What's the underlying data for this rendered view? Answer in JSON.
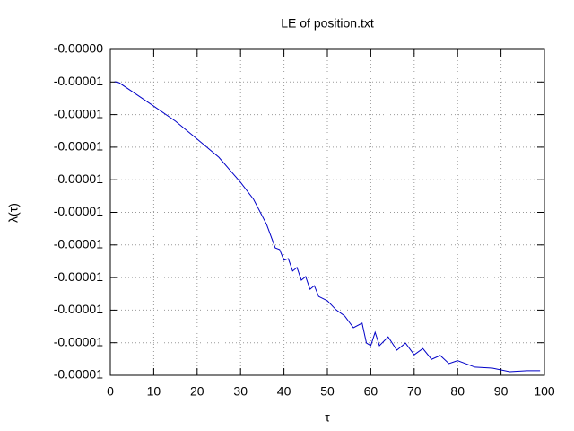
{
  "chart_data": {
    "type": "line",
    "title": "LE of position.txt",
    "x_label": "τ",
    "y_label": "λ(τ)",
    "series": [
      {
        "name": "LE",
        "color": "#0000c8",
        "x": [
          1,
          2,
          5,
          10,
          15,
          20,
          25,
          30,
          33,
          36,
          38,
          39,
          40,
          41,
          42,
          43,
          44,
          45,
          46,
          47,
          48,
          50,
          52,
          54,
          56,
          58,
          59,
          60,
          61,
          62,
          64,
          66,
          68,
          70,
          72,
          74,
          76,
          78,
          80,
          84,
          88,
          92,
          96,
          99
        ],
        "values": [
          -5.49e-06,
          -5.52e-06,
          -5.79e-06,
          -6.24e-06,
          -6.7e-06,
          -7.25e-06,
          -7.81e-06,
          -8.58e-06,
          -9.1e-06,
          -9.87e-06,
          -1.059e-05,
          -1.064e-05,
          -1.097e-05,
          -1.092e-05,
          -1.13e-05,
          -1.119e-05,
          -1.158e-05,
          -1.147e-05,
          -1.186e-05,
          -1.175e-05,
          -1.208e-05,
          -1.221e-05,
          -1.249e-05,
          -1.268e-05,
          -1.304e-05,
          -1.29e-05,
          -1.351e-05,
          -1.359e-05,
          -1.318e-05,
          -1.359e-05,
          -1.332e-05,
          -1.373e-05,
          -1.351e-05,
          -1.387e-05,
          -1.368e-05,
          -1.401e-05,
          -1.389e-05,
          -1.414e-05,
          -1.405e-05,
          -1.425e-05,
          -1.428e-05,
          -1.439e-05,
          -1.436e-05,
          -1.436e-05
        ]
      }
    ],
    "xlim": [
      0,
      100
    ],
    "xticks": [
      0,
      10,
      20,
      30,
      40,
      50,
      60,
      70,
      80,
      90,
      100
    ],
    "ylim": [
      -1.45e-05,
      -4.5e-06
    ],
    "yticks": [
      {
        "value": -4.5e-06,
        "label": "-0.00000"
      },
      {
        "value": -5.5e-06,
        "label": "-0.00001"
      },
      {
        "value": -6.5e-06,
        "label": "-0.00001"
      },
      {
        "value": -7.5e-06,
        "label": "-0.00001"
      },
      {
        "value": -8.5e-06,
        "label": "-0.00001"
      },
      {
        "value": -9.5e-06,
        "label": "-0.00001"
      },
      {
        "value": -1.05e-05,
        "label": "-0.00001"
      },
      {
        "value": -1.15e-05,
        "label": "-0.00001"
      },
      {
        "value": -1.25e-05,
        "label": "-0.00001"
      },
      {
        "value": -1.35e-05,
        "label": "-0.00001"
      },
      {
        "value": -1.45e-05,
        "label": "-0.00001"
      }
    ],
    "grid": true
  }
}
